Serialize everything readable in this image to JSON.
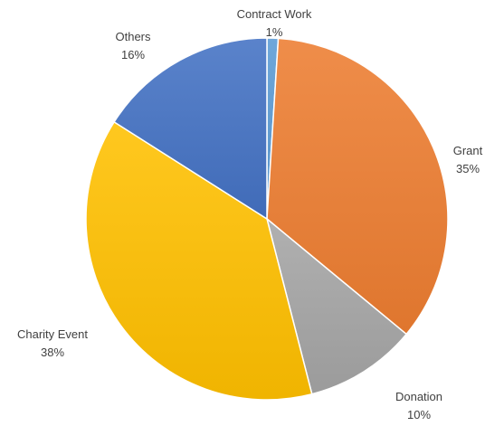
{
  "chart_data": {
    "type": "pie",
    "title": "",
    "start": "top",
    "direction": "clockwise",
    "legend": "none",
    "slices": [
      {
        "label": "Contract Work",
        "value": 1,
        "value_label": "1%",
        "color": "#5b9bd5"
      },
      {
        "label": "Grant",
        "value": 35,
        "value_label": "35%",
        "color": "#ed7d31"
      },
      {
        "label": "Donation",
        "value": 10,
        "value_label": "10%",
        "color": "#a5a5a5"
      },
      {
        "label": "Charity Event",
        "value": 38,
        "value_label": "38%",
        "color": "#ffc000"
      },
      {
        "label": "Others",
        "value": 16,
        "value_label": "16%",
        "color": "#4472c4"
      }
    ]
  }
}
